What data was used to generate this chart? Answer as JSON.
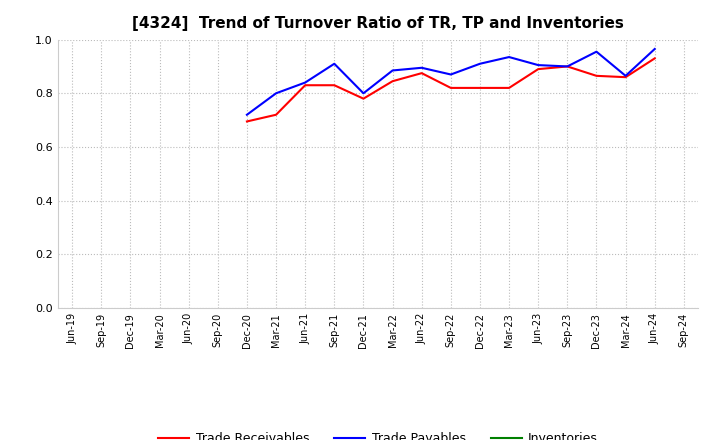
{
  "title": "[4324]  Trend of Turnover Ratio of TR, TP and Inventories",
  "x_labels": [
    "Jun-19",
    "Sep-19",
    "Dec-19",
    "Mar-20",
    "Jun-20",
    "Sep-20",
    "Dec-20",
    "Mar-21",
    "Jun-21",
    "Sep-21",
    "Dec-21",
    "Mar-22",
    "Jun-22",
    "Sep-22",
    "Dec-22",
    "Mar-23",
    "Jun-23",
    "Sep-23",
    "Dec-23",
    "Mar-24",
    "Jun-24",
    "Sep-24"
  ],
  "trade_receivables": {
    "x_indices": [
      6,
      7,
      8,
      9,
      10,
      11,
      12,
      13,
      14,
      15,
      16,
      17,
      18,
      19,
      20
    ],
    "values": [
      0.695,
      0.72,
      0.83,
      0.83,
      0.78,
      0.845,
      0.875,
      0.82,
      0.82,
      0.82,
      0.89,
      0.9,
      0.865,
      0.86,
      0.93
    ],
    "color": "#ff0000"
  },
  "trade_payables": {
    "x_indices": [
      6,
      7,
      8,
      9,
      10,
      11,
      12,
      13,
      14,
      15,
      16,
      17,
      18,
      19,
      20
    ],
    "values": [
      0.72,
      0.8,
      0.84,
      0.91,
      0.8,
      0.885,
      0.895,
      0.87,
      0.91,
      0.935,
      0.905,
      0.9,
      0.955,
      0.865,
      0.965
    ],
    "color": "#0000ff"
  },
  "inventories": {
    "x_indices": [],
    "values": [],
    "color": "#008000"
  },
  "ylim": [
    0.0,
    1.0
  ],
  "yticks": [
    0.0,
    0.2,
    0.4,
    0.6,
    0.8,
    1.0
  ],
  "background_color": "#ffffff",
  "grid_color": "#bbbbbb",
  "title_fontsize": 11,
  "tick_fontsize": 7,
  "legend_labels": [
    "Trade Receivables",
    "Trade Payables",
    "Inventories"
  ],
  "legend_colors": [
    "#ff0000",
    "#0000ff",
    "#008000"
  ]
}
